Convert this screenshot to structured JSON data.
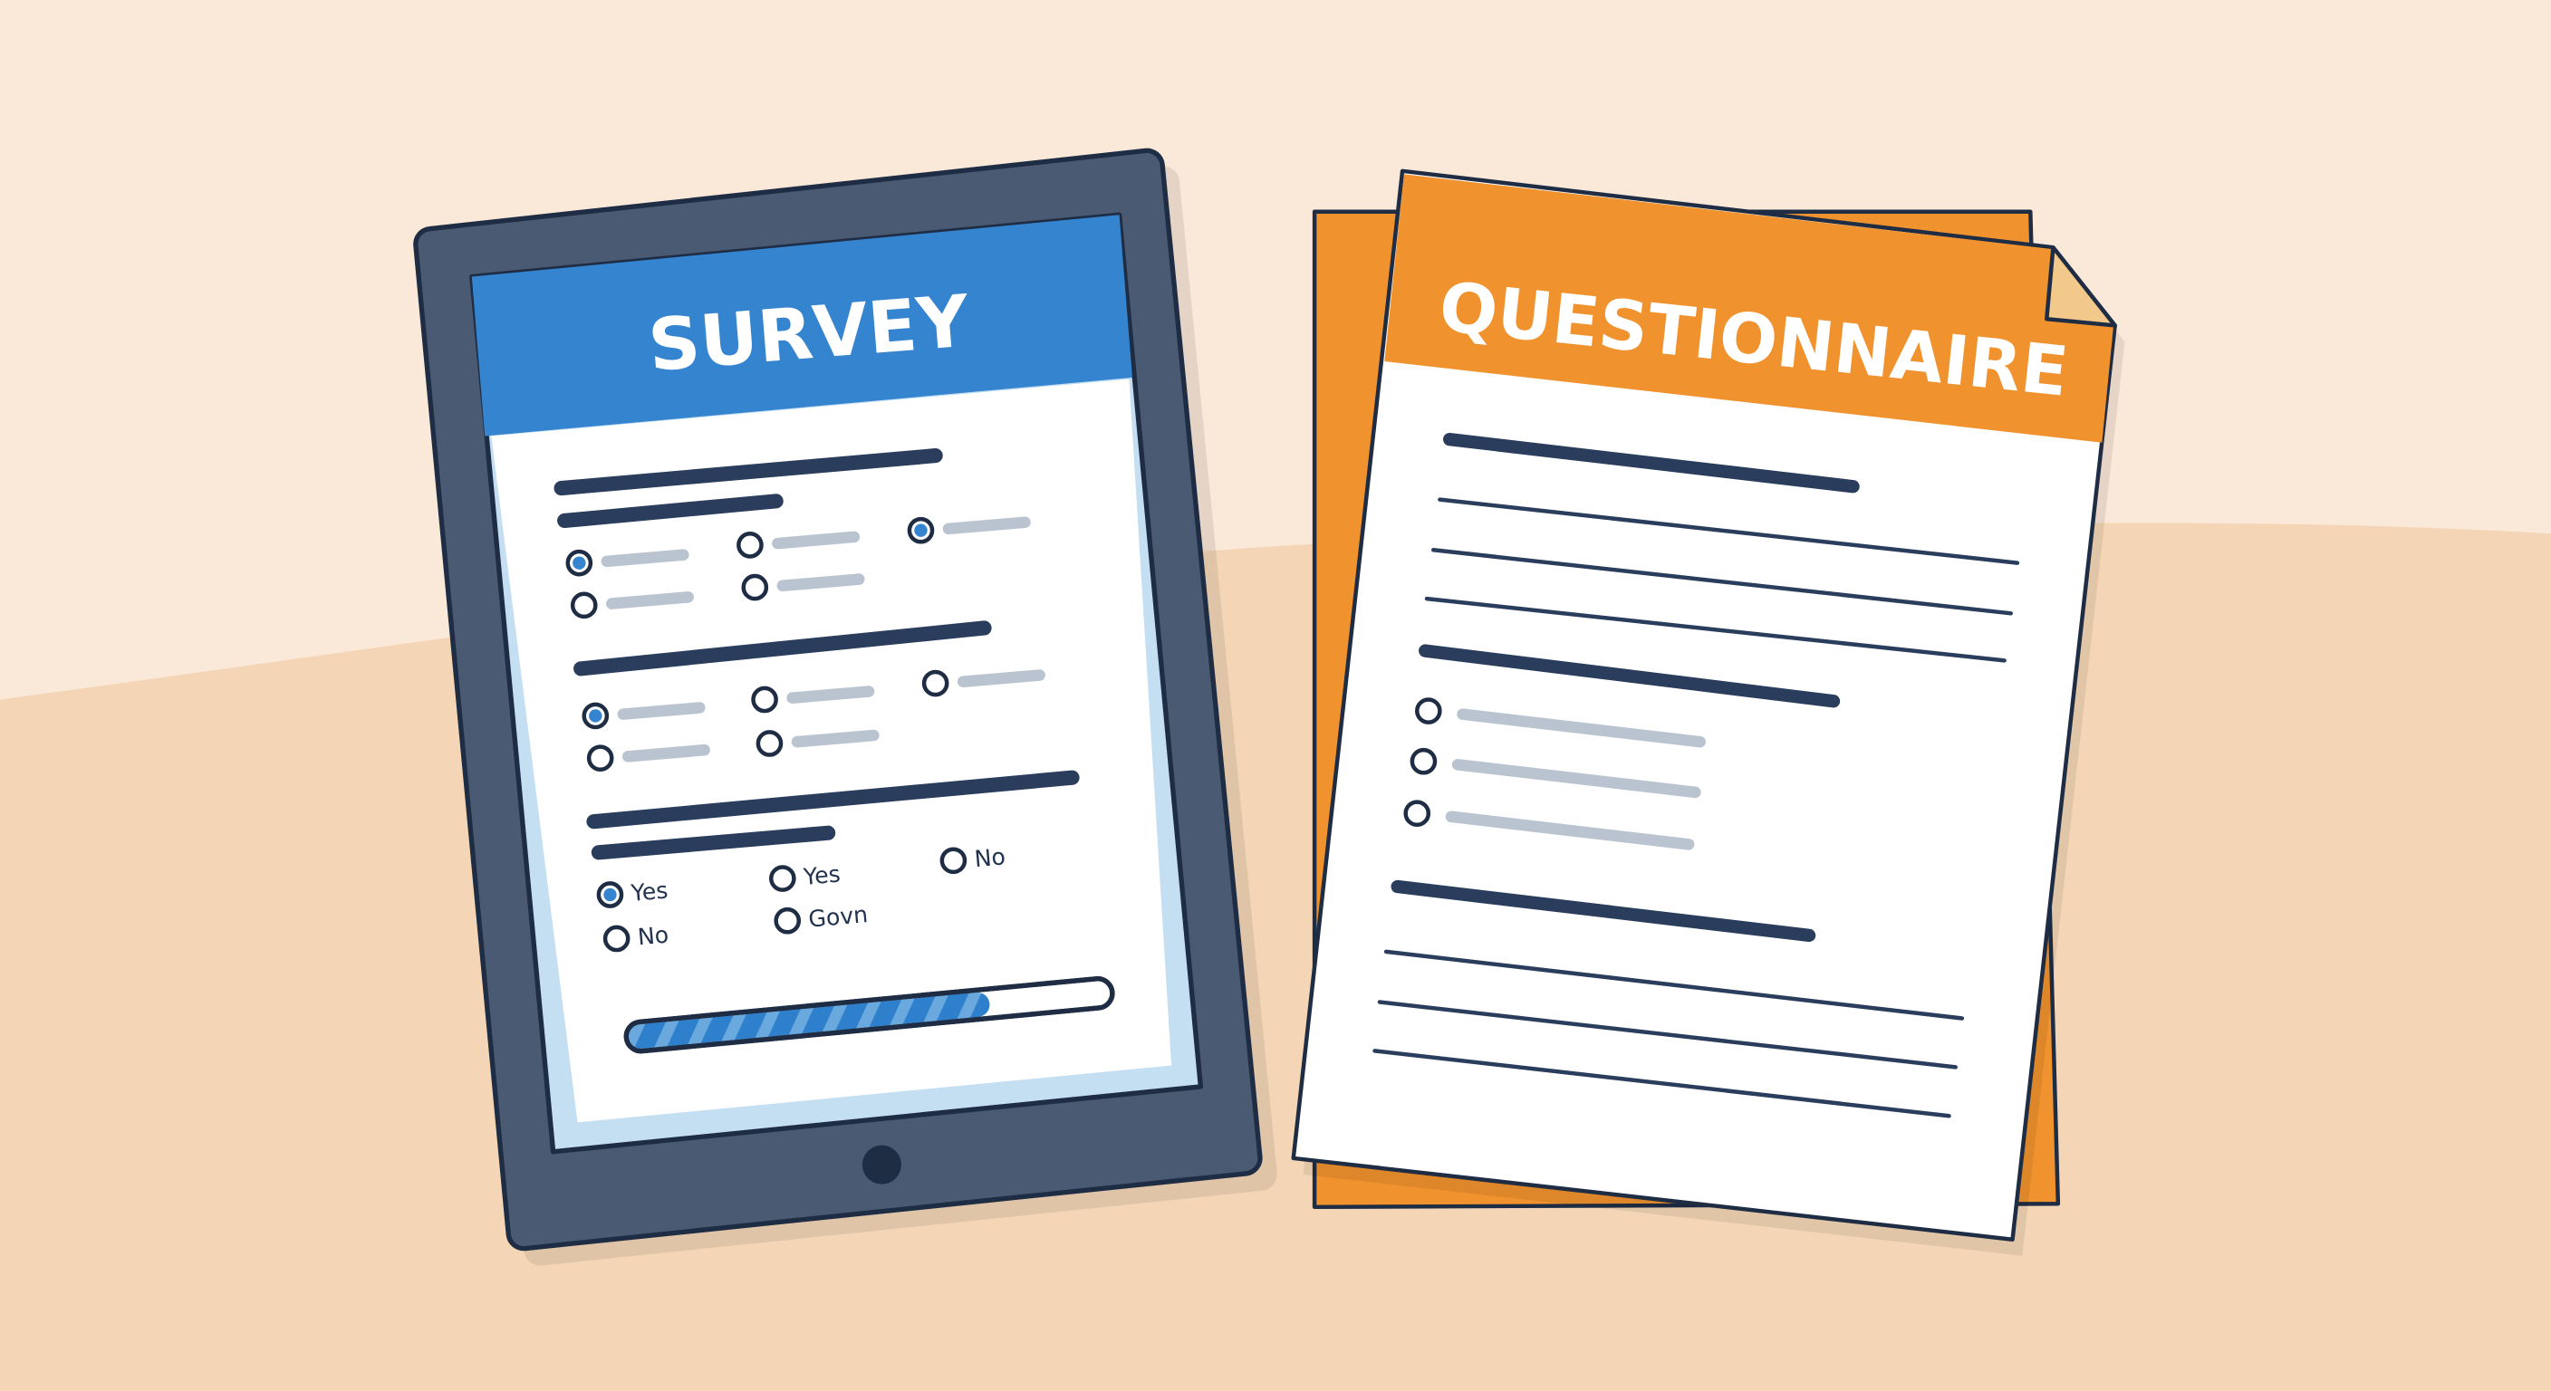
{
  "colors": {
    "background_top": "#fae8d8",
    "background_bottom": "#f4d6b6",
    "tablet_frame": "#4a5a72",
    "outline": "#1f2d44",
    "survey_header": "#3584d0",
    "screen_edge": "#c4def2",
    "questionnaire_orange": "#f0922e",
    "dark_line": "#2a3d5c",
    "gray_line": "#b9c4d0",
    "progress_fill": "#2f80cc",
    "progress_stripe": "#6aa9de"
  },
  "survey": {
    "title": "SURVEY",
    "question_groups": [
      {
        "options": [
          {
            "selected": true
          },
          {
            "selected": false
          },
          {
            "selected": false
          },
          {
            "selected": false
          },
          {
            "selected": true
          }
        ]
      },
      {
        "options": [
          {
            "selected": true
          },
          {
            "selected": false
          },
          {
            "selected": false
          },
          {
            "selected": false
          },
          {
            "selected": false
          }
        ]
      },
      {
        "options": [
          {
            "label": "Yes",
            "selected": true
          },
          {
            "label": "No",
            "selected": false
          },
          {
            "label": "Yes",
            "selected": false
          },
          {
            "label": "Govn",
            "selected": false
          },
          {
            "label": "No",
            "selected": false
          }
        ]
      }
    ],
    "progress_fraction": 0.75
  },
  "questionnaire": {
    "title": "QUESTIONNAIRE",
    "radio_options": [
      {
        "selected": false
      },
      {
        "selected": false
      },
      {
        "selected": false
      }
    ]
  }
}
